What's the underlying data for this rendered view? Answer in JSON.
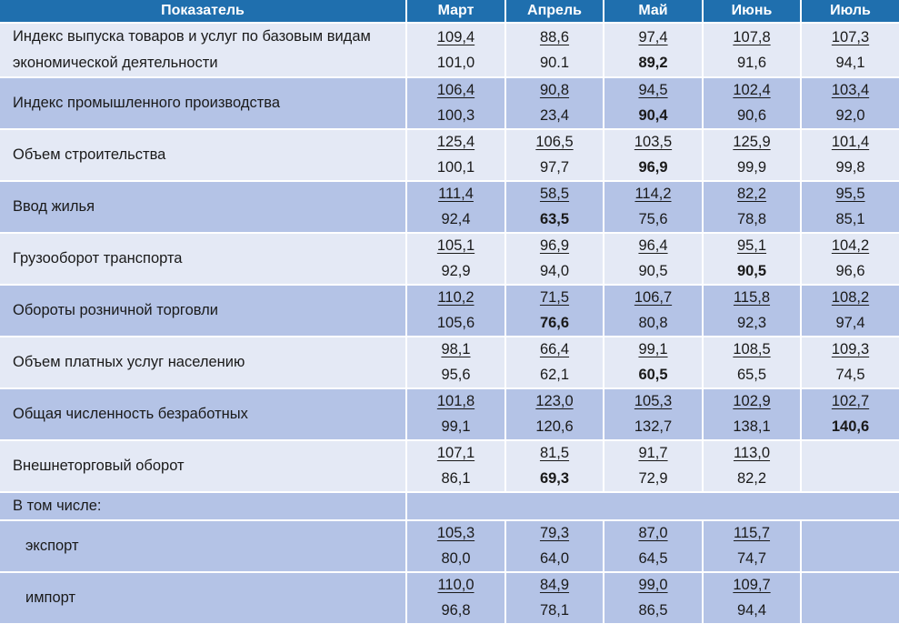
{
  "headers": [
    "Показатель",
    "Март",
    "Апрель",
    "Май",
    "Июнь",
    "Июль"
  ],
  "rows": [
    {
      "label": "Индекс выпуска товаров и услуг по базовым видам экономической деятельности",
      "top": [
        "109,4",
        "88,6",
        "97,4",
        "107,8",
        "107,3"
      ],
      "bottom": [
        "101,0",
        "90.1",
        "89,2",
        "91,6",
        "94,1"
      ],
      "bold_index": 2
    },
    {
      "label": "Индекс промышленного производства",
      "top": [
        "106,4",
        "90,8",
        "94,5",
        "102,4",
        "103,4"
      ],
      "bottom": [
        "100,3",
        "23,4",
        "90,4",
        "90,6",
        "92,0"
      ],
      "bold_index": 2
    },
    {
      "label": "Объем строительства",
      "top": [
        "125,4",
        "106,5",
        "103,5",
        "125,9",
        "101,4"
      ],
      "bottom": [
        "100,1",
        "97,7",
        "96,9",
        "99,9",
        "99,8"
      ],
      "bold_index": 2
    },
    {
      "label": "Ввод жилья",
      "top": [
        "111,4",
        "58,5",
        "114,2",
        "82,2",
        "95,5"
      ],
      "bottom": [
        "92,4",
        "63,5",
        "75,6",
        "78,8",
        "85,1"
      ],
      "bold_index": 1
    },
    {
      "label": "Грузооборот транспорта",
      "top": [
        "105,1",
        "96,9",
        "96,4",
        "95,1",
        "104,2"
      ],
      "bottom": [
        "92,9",
        "94,0",
        "90,5",
        "90,5",
        "96,6"
      ],
      "bold_index": 3
    },
    {
      "label": "Обороты розничной торговли",
      "top": [
        "110,2",
        "71,5",
        "106,7",
        "115,8",
        "108,2"
      ],
      "bottom": [
        "105,6",
        "76,6",
        "80,8",
        "92,3",
        "97,4"
      ],
      "bold_index": 1
    },
    {
      "label": "Объем платных услуг населению",
      "top": [
        "98,1",
        "66,4",
        "99,1",
        "108,5",
        "109,3"
      ],
      "bottom": [
        "95,6",
        "62,1",
        "60,5",
        "65,5",
        "74,5"
      ],
      "bold_index": 2
    },
    {
      "label": "Общая численность безработных",
      "top": [
        "101,8",
        "123,0",
        "105,3",
        "102,9",
        "102,7"
      ],
      "bottom": [
        "99,1",
        "120,6",
        "132,7",
        "138,1",
        "140,6"
      ],
      "bold_index": 4
    },
    {
      "label": "Внешнеторговый оборот",
      "top": [
        "107,1",
        "81,5",
        "91,7",
        "113,0",
        ""
      ],
      "bottom": [
        "86,1",
        "69,3",
        "72,9",
        "82,2",
        ""
      ],
      "bold_index": 1
    }
  ],
  "section_label": "В том числе:",
  "sub_rows": [
    {
      "label": "экспорт",
      "top": [
        "105,3",
        "79,3",
        "87,0",
        "115,7",
        ""
      ],
      "bottom": [
        "80,0",
        "64,0",
        "64,5",
        "74,7",
        ""
      ]
    },
    {
      "label": "импорт",
      "top": [
        "110,0",
        "84,9",
        "99,0",
        "109,7",
        ""
      ],
      "bottom": [
        "96,8",
        "78,1",
        "86,5",
        "94,4",
        ""
      ]
    }
  ]
}
